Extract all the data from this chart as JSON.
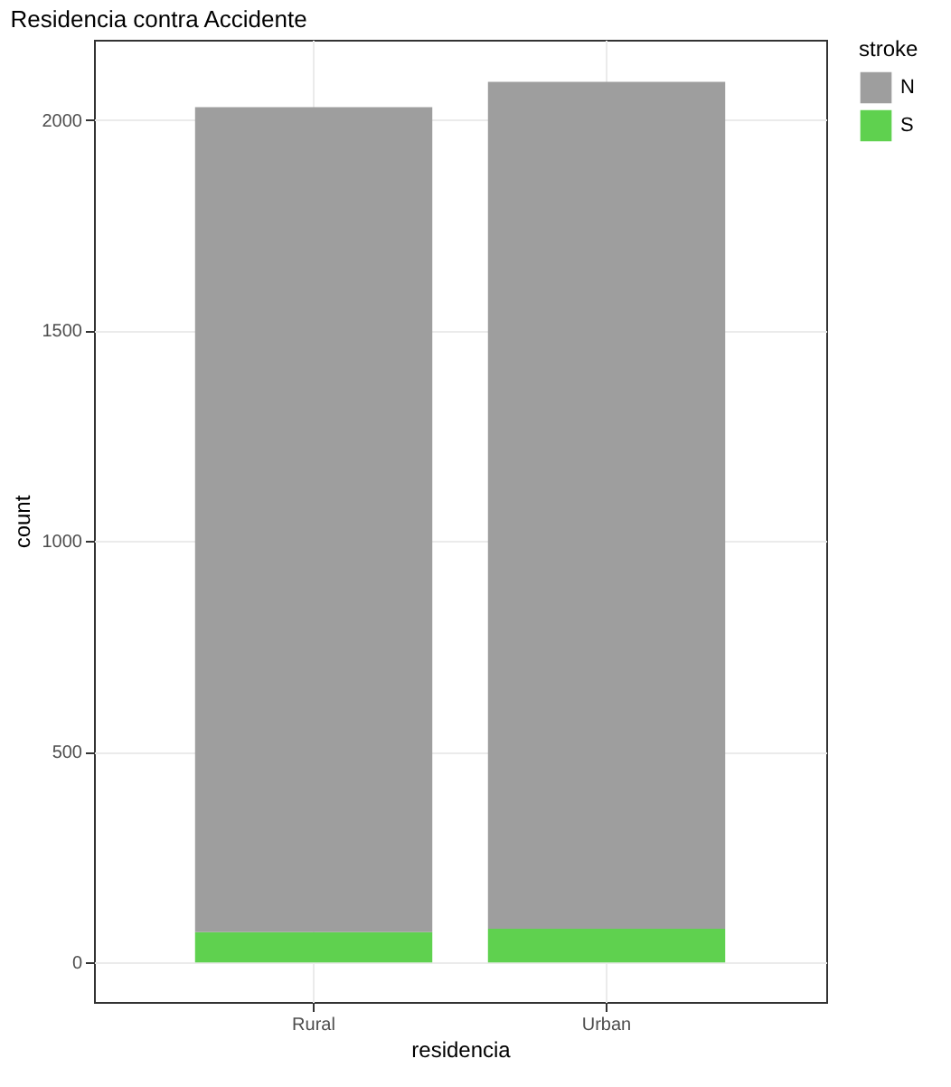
{
  "chart_data": {
    "type": "bar",
    "title": "Residencia contra Accidente",
    "xlabel": "residencia",
    "ylabel": "count",
    "legend_title": "stroke",
    "categories": [
      "Rural",
      "Urban"
    ],
    "stacked": true,
    "series": [
      {
        "name": "S",
        "color": "#5fd14f",
        "values": [
          72,
          80
        ]
      },
      {
        "name": "N",
        "color": "#9e9e9e",
        "values": [
          1958,
          2010
        ]
      }
    ],
    "ylim": [
      -94,
      2190
    ],
    "yticks": [
      0,
      500,
      1000,
      1500,
      2000
    ],
    "grid": true,
    "legend": "right"
  }
}
